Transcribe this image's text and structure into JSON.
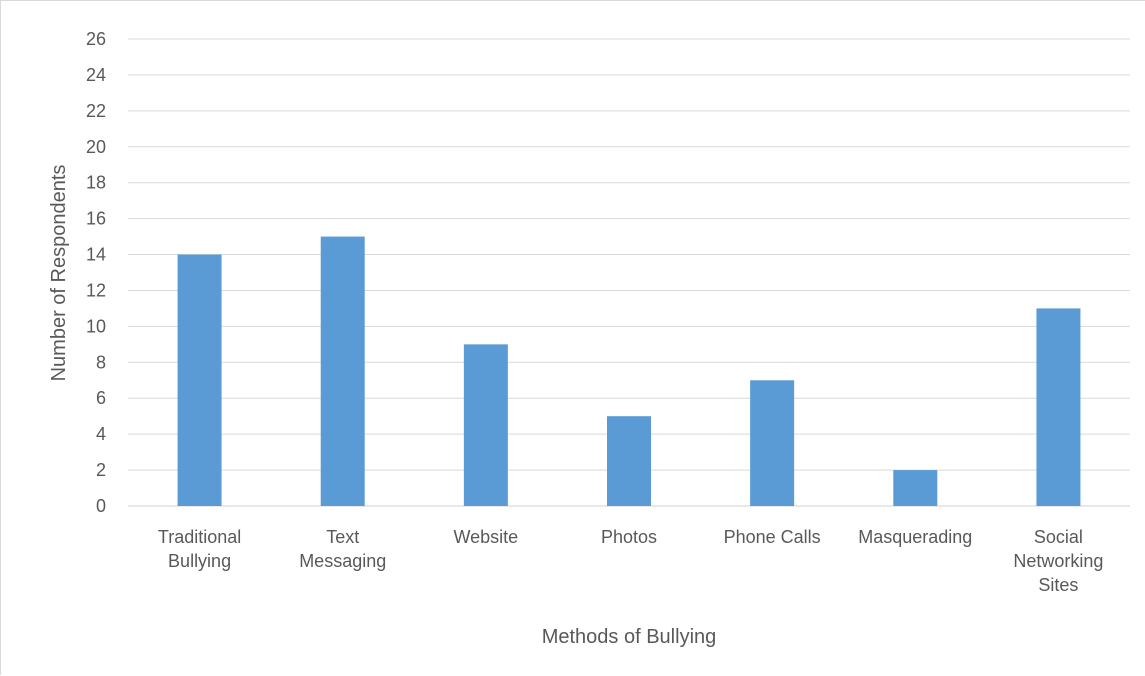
{
  "chart_data": {
    "type": "bar",
    "title": "",
    "xlabel": "Methods of Bullying",
    "ylabel": "Number of Respondents",
    "categories": [
      [
        "Traditional",
        "Bullying"
      ],
      [
        "Text",
        "Messaging"
      ],
      [
        "Website"
      ],
      [
        "Photos"
      ],
      [
        "Phone Calls"
      ],
      [
        "Masquerading"
      ],
      [
        "Social",
        "Networking",
        "Sites"
      ]
    ],
    "values": [
      14,
      15,
      9,
      5,
      7,
      2,
      11
    ],
    "ylim": [
      0,
      26
    ],
    "yticks": [
      0,
      2,
      4,
      6,
      8,
      10,
      12,
      14,
      16,
      18,
      20,
      22,
      24,
      26
    ],
    "grid": true,
    "legend": "none",
    "colors": {
      "bar": "#5b9bd5",
      "grid": "#d9d9d9",
      "text": "#595959"
    }
  }
}
